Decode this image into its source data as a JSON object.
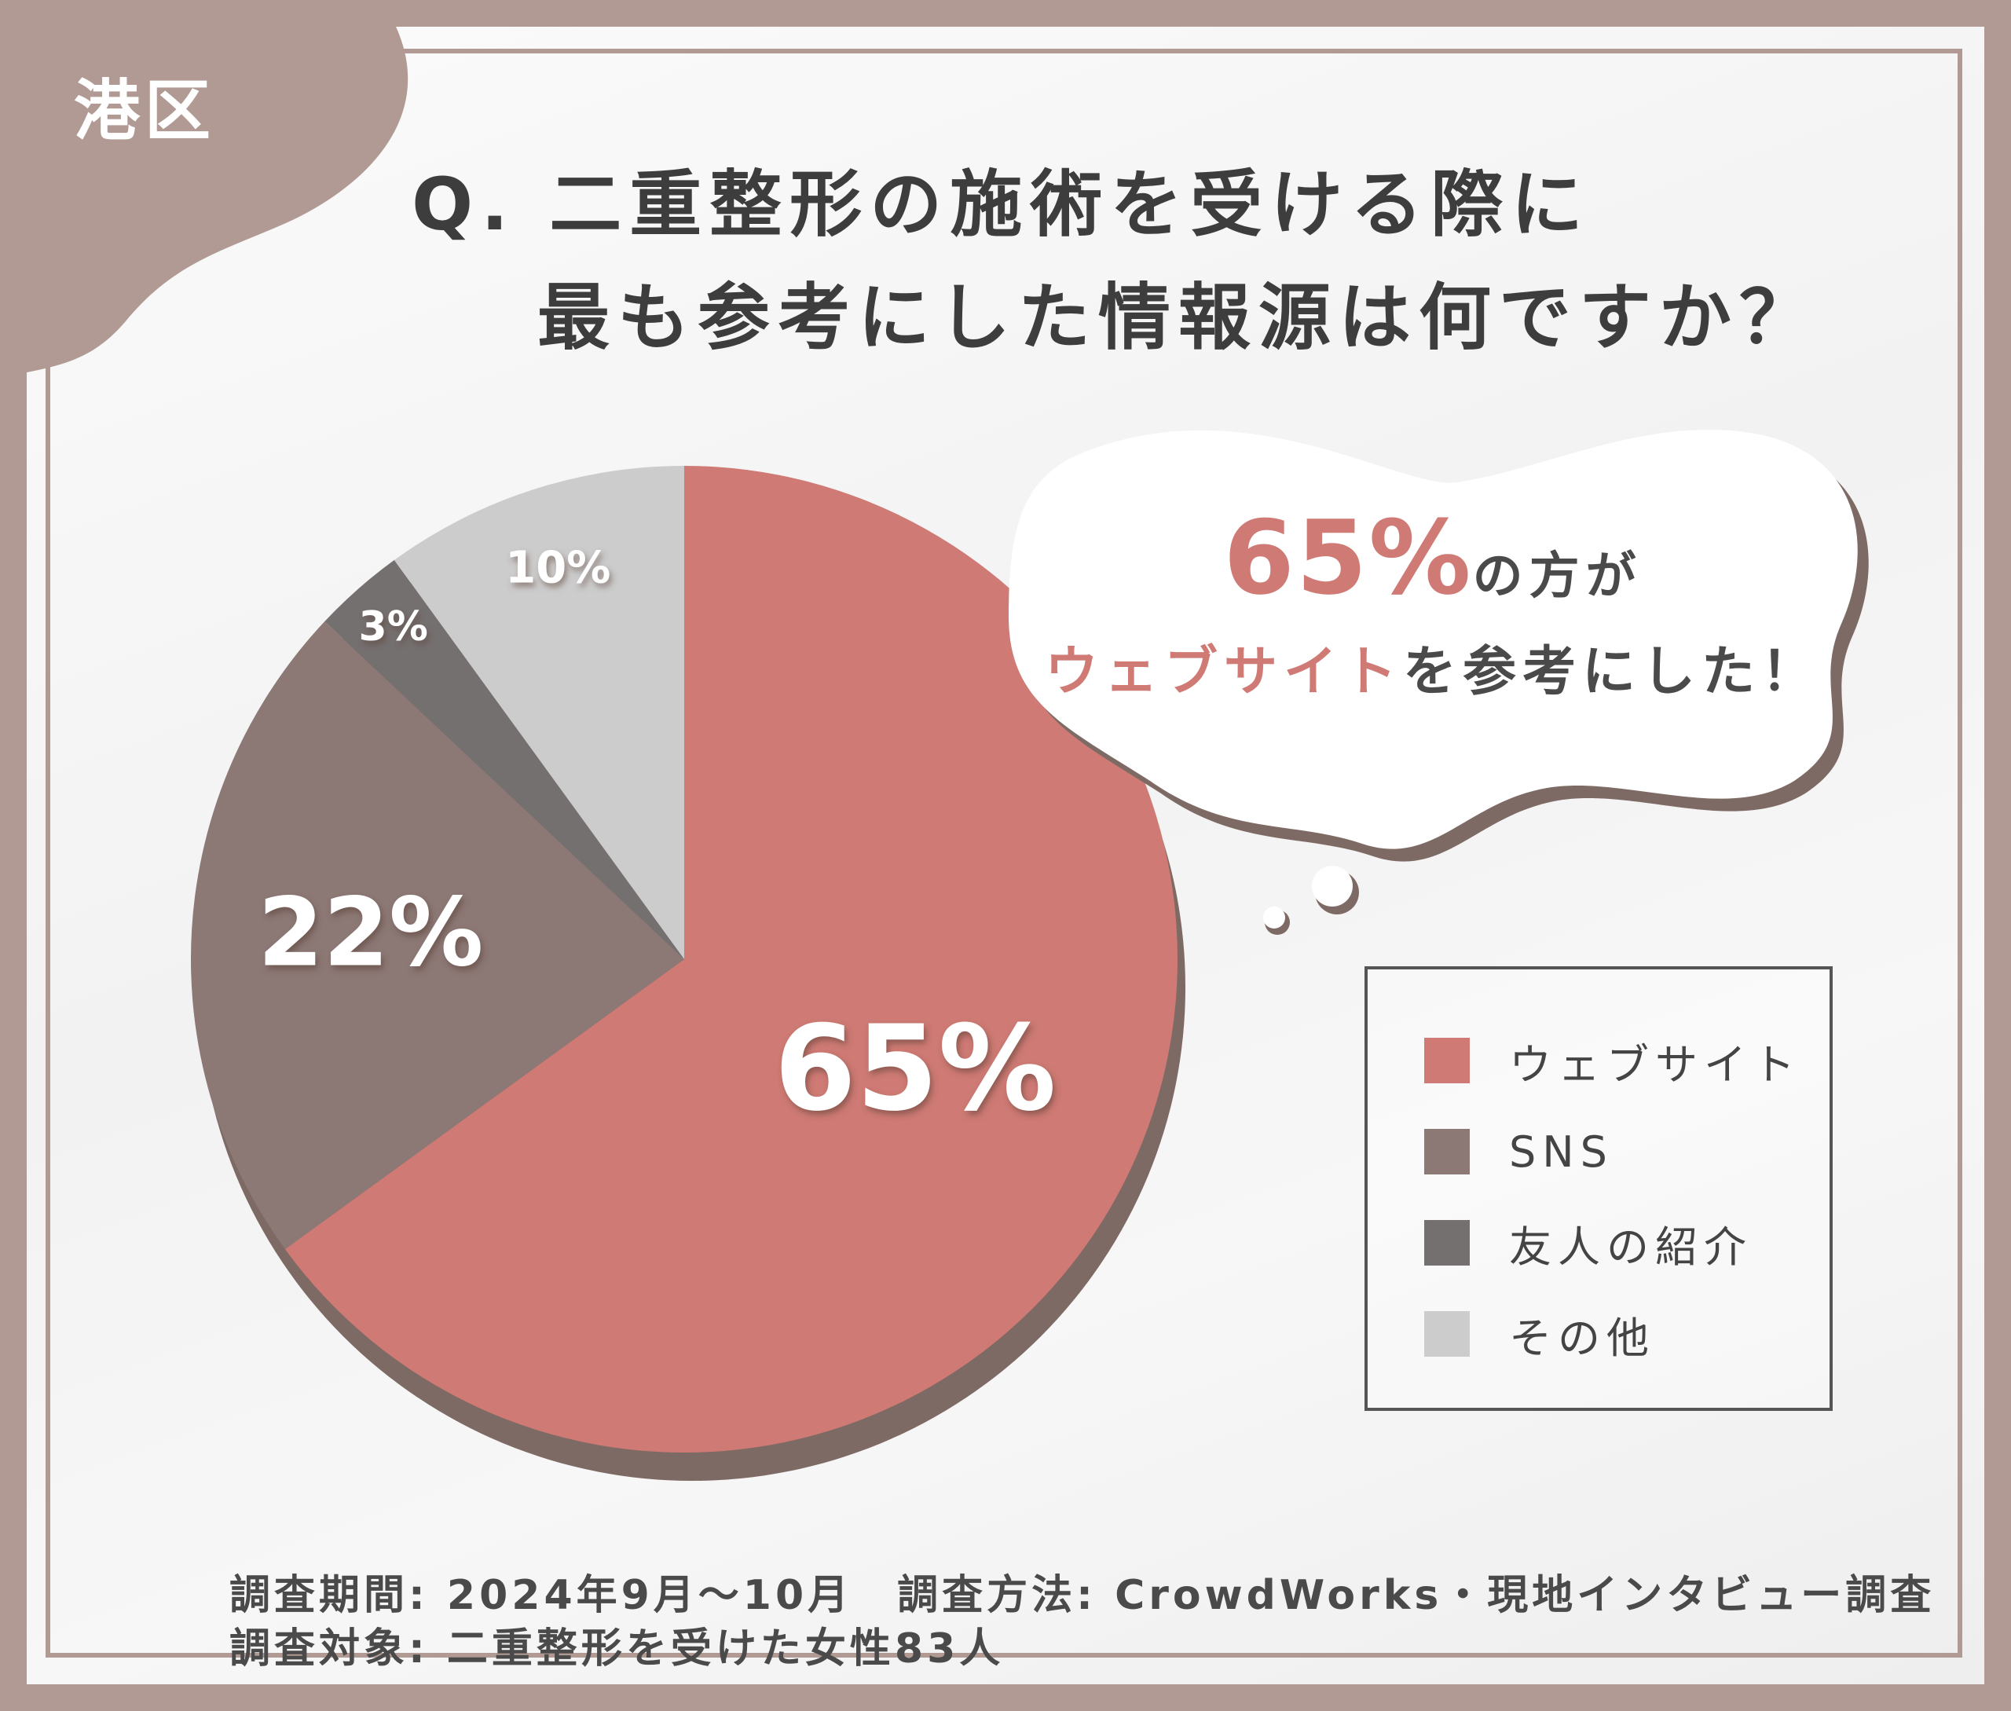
{
  "region": "港区",
  "question": {
    "line1": "Q. 二重整形の施術を受ける際に",
    "line2": "最も参考にした情報源は何ですか？"
  },
  "colors": {
    "background": "#b19a93",
    "accent": "#cf7a74",
    "website": "#cf7a74",
    "sns": "#8c7875",
    "friend": "#757070",
    "other": "#cccccc",
    "shadow": "#7e6a64"
  },
  "callout": {
    "pct": "65%",
    "line1_rest": "の方が",
    "line2_accent": "ウェブサイト",
    "line2_rest": "を参考にした！"
  },
  "chart_data": {
    "type": "pie",
    "slices": [
      {
        "label": "ウェブサイト",
        "value": 65,
        "display": "65%",
        "color": "#cf7a74"
      },
      {
        "label": "SNS",
        "value": 22,
        "display": "22%",
        "color": "#8c7875"
      },
      {
        "label": "友人の紹介",
        "value": 3,
        "display": "3%",
        "color": "#757070"
      },
      {
        "label": "その他",
        "value": 10,
        "display": "10%",
        "color": "#cccccc"
      }
    ],
    "start": "12 o'clock",
    "direction": "clockwise",
    "legend_position": "right"
  },
  "footer": {
    "line1": "調査期間: 2024年9月～10月　調査方法: CrowdWorks・現地インタビュー調査",
    "line2": "調査対象: 二重整形を受けた女性83人"
  }
}
